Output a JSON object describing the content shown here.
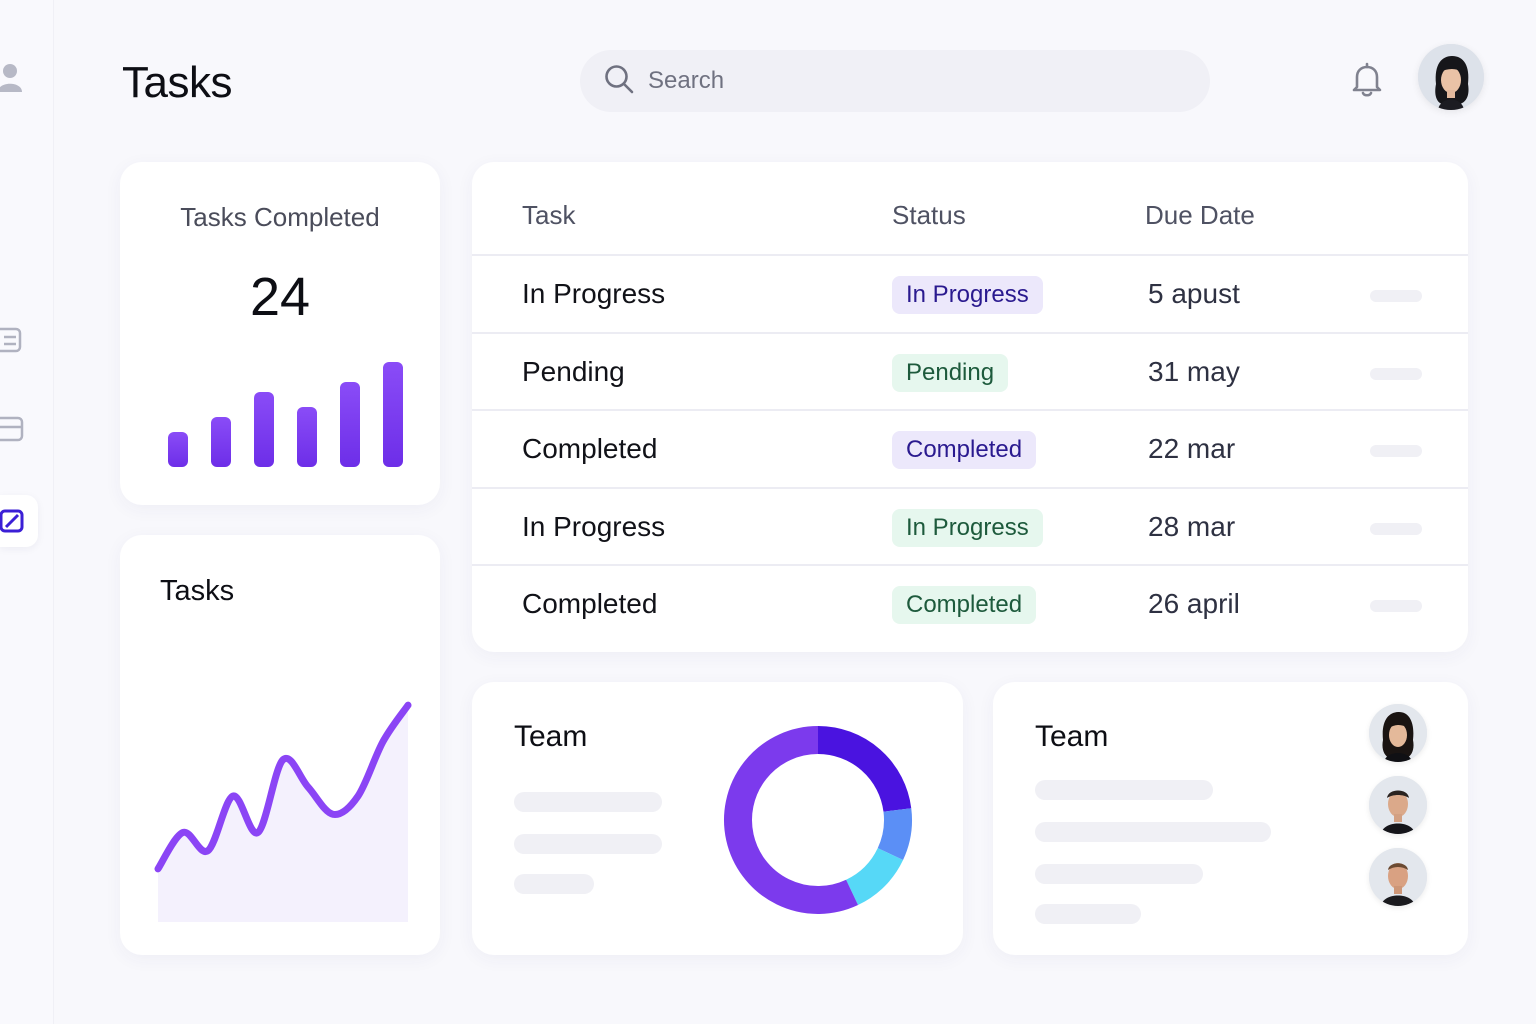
{
  "header": {
    "title": "Tasks",
    "search_placeholder": "Search"
  },
  "sidebar": {
    "items": [
      {
        "icon": "user-icon",
        "active": false
      },
      {
        "icon": "list-icon",
        "active": false
      },
      {
        "icon": "calendar-icon",
        "active": false
      },
      {
        "icon": "edit-icon",
        "active": true
      }
    ]
  },
  "tasks_completed": {
    "label": "Tasks Completed",
    "value": "24"
  },
  "tasks_chart": {
    "title": "Tasks"
  },
  "table": {
    "columns": [
      "Task",
      "Status",
      "Due Date"
    ],
    "rows": [
      {
        "task": "In Progress",
        "status": "In Progress",
        "status_color": "purple",
        "due": "5 apust"
      },
      {
        "task": "Pending",
        "status": "Pending",
        "status_color": "green",
        "due": "31 may"
      },
      {
        "task": "Completed",
        "status": "Completed",
        "status_color": "purple",
        "due": "22 mar"
      },
      {
        "task": "In Progress",
        "status": "In Progress",
        "status_color": "green",
        "due": "28 mar"
      },
      {
        "task": "Completed",
        "status": "Completed",
        "status_color": "green",
        "due": "26 april"
      }
    ]
  },
  "team_donut": {
    "title": "Team"
  },
  "team_members": {
    "title": "Team"
  },
  "colors": {
    "accent": "#7c3aed",
    "accent_dark": "#4a13e0",
    "blue": "#5b8ff6",
    "cyan": "#56d8f7",
    "badge_purple_bg": "#ece8fb",
    "badge_green_bg": "#e6f7ee"
  },
  "chart_data": [
    {
      "type": "bar",
      "categories": [
        "",
        "",
        "",
        "",
        "",
        ""
      ],
      "values": [
        3.5,
        5,
        7.5,
        6,
        8.5,
        10.5
      ],
      "ylim": [
        0,
        11
      ],
      "title": "",
      "xlabel": "",
      "ylabel": ""
    },
    {
      "type": "area",
      "x": [
        0,
        1,
        2,
        3,
        4,
        5,
        6,
        7,
        8,
        9,
        10
      ],
      "values": [
        1,
        3,
        2,
        5,
        3,
        7,
        5.5,
        4,
        5,
        8,
        10
      ],
      "ylim": [
        0,
        11
      ],
      "title": "",
      "xlabel": "",
      "ylabel": ""
    },
    {
      "type": "pie",
      "labels": [
        "",
        "",
        "",
        ""
      ],
      "values": [
        23,
        9,
        11,
        57
      ],
      "title": ""
    }
  ]
}
